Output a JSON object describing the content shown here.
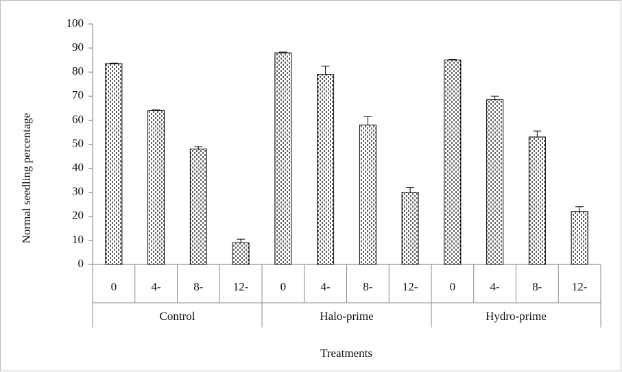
{
  "chart_data": {
    "type": "bar",
    "ylabel": "Normal seedling percentage",
    "xlabel": "Treatments",
    "groups": [
      "Control",
      "Halo-prime",
      "Hydro-prime"
    ],
    "categories": [
      "0",
      "4-",
      "8-",
      "12-",
      "0",
      "4-",
      "8-",
      "12-",
      "0",
      "4-",
      "8-",
      "12-"
    ],
    "values": [
      83.5,
      64,
      48,
      9,
      88,
      79,
      58,
      30,
      85,
      68.5,
      53,
      22
    ],
    "errors": [
      0.2,
      0.3,
      1,
      1.5,
      0.3,
      3.5,
      3.5,
      2,
      0.3,
      1.5,
      2.5,
      2
    ],
    "color": "#000000",
    "ylim": [
      0,
      100
    ],
    "yticks": [
      0,
      10,
      20,
      30,
      40,
      50,
      60,
      70,
      80,
      90,
      100
    ],
    "grid": false
  }
}
